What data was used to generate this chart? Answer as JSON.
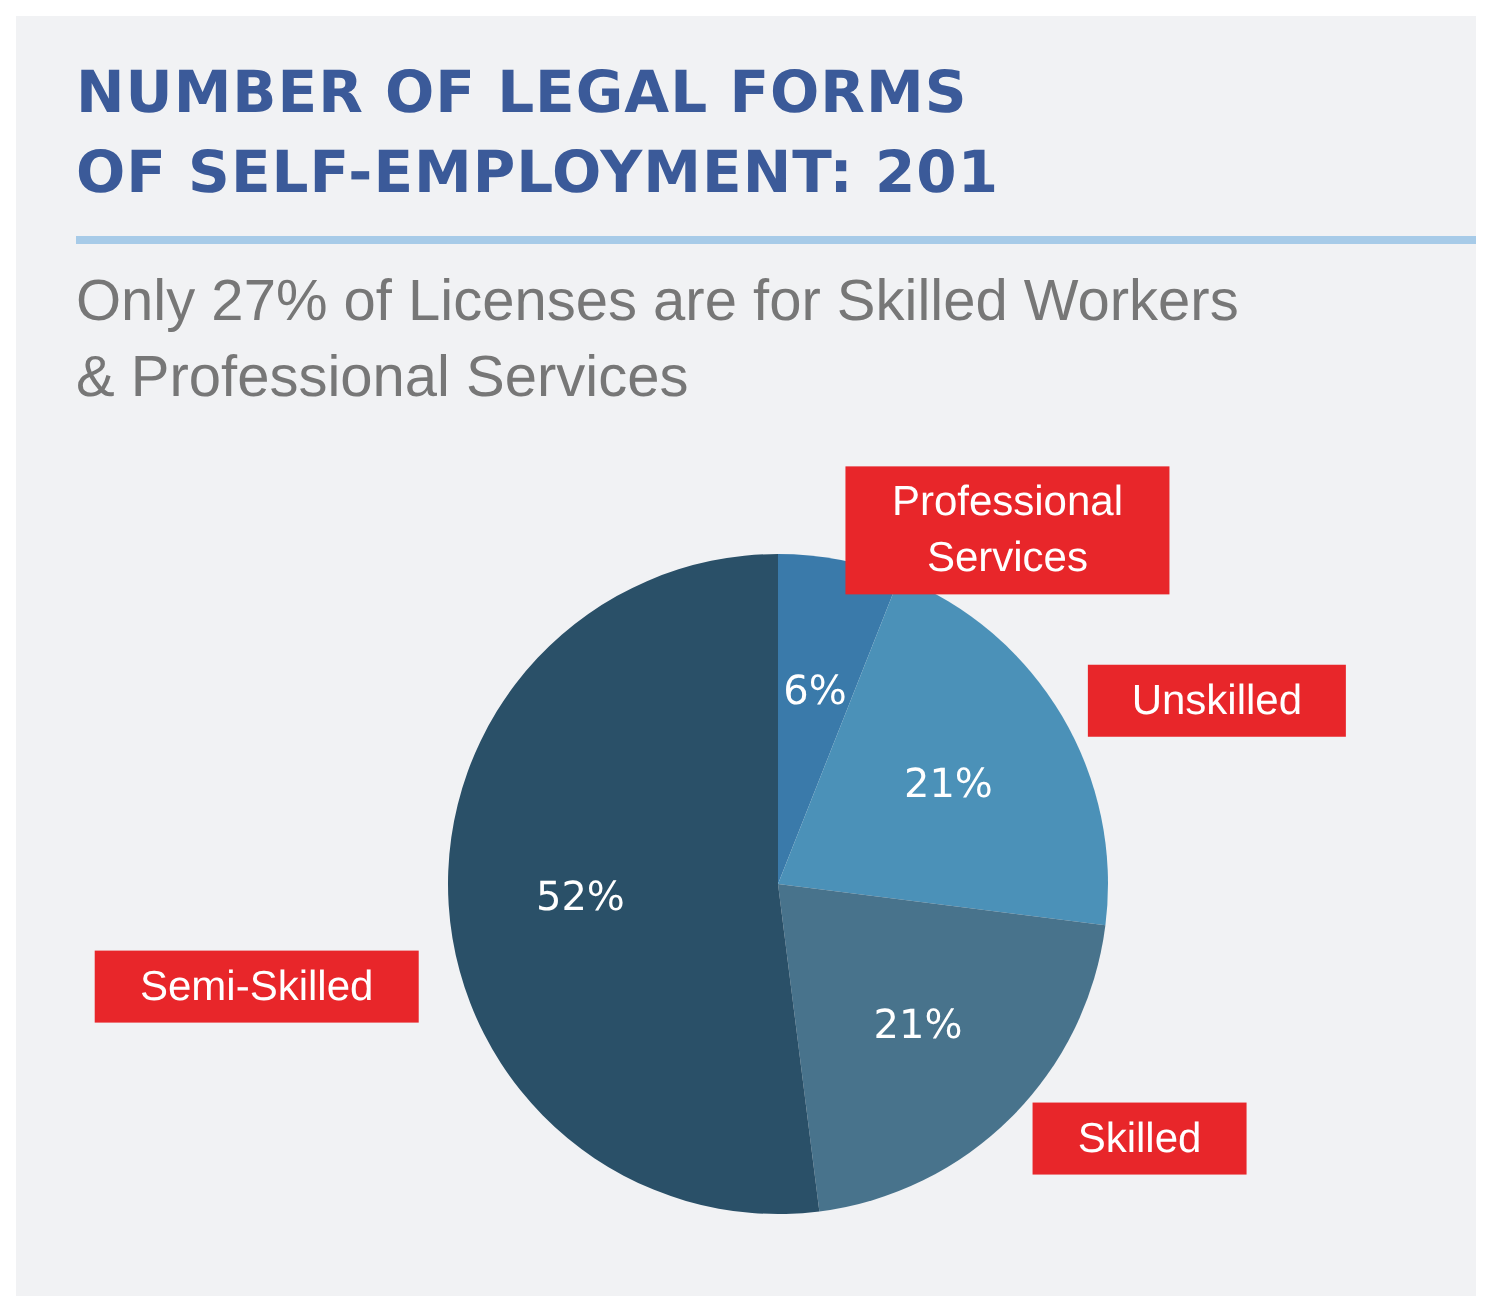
{
  "chart_data": {
    "type": "pie",
    "title": "NUMBER OF LEGAL FORMS OF SELF-EMPLOYMENT: 201",
    "subtitle": "Only 27% of Licenses are for Skilled Workers & Professional Services",
    "categories": [
      "Professional Services",
      "Unskilled",
      "Skilled",
      "Semi-Skilled"
    ],
    "values": [
      6,
      21,
      21,
      52
    ],
    "colors": [
      "#3a7aaa",
      "#4b91b8",
      "#48738c",
      "#2a5068"
    ],
    "value_labels": [
      "6%",
      "21%",
      "21%",
      "52%"
    ]
  }
}
